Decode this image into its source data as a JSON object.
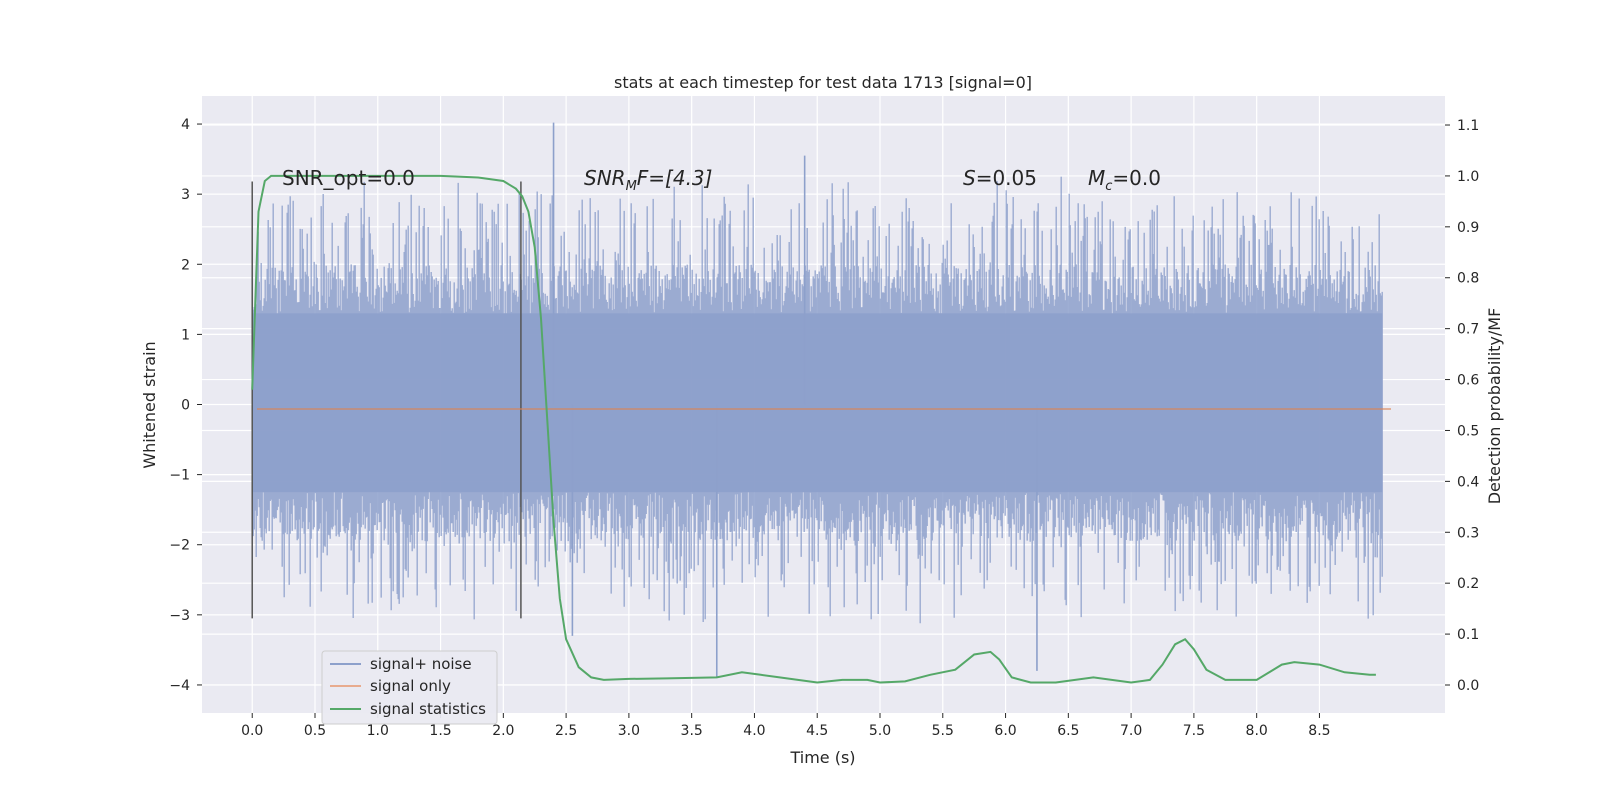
{
  "chart_data": {
    "type": "line",
    "title": "stats at each timestep for test data 1713 [signal=0]",
    "xlabel": "Time (s)",
    "ylabel": "Whitened strain",
    "y2label": "Detection probability/MF",
    "xlim": [
      -0.4,
      9.5
    ],
    "ylim": [
      -4.4,
      4.4
    ],
    "y2lim": [
      -0.055,
      1.157
    ],
    "xticks": [
      "0.0",
      "0.5",
      "1.0",
      "1.5",
      "2.0",
      "2.5",
      "3.0",
      "3.5",
      "4.0",
      "4.5",
      "5.0",
      "5.5",
      "6.0",
      "6.5",
      "7.0",
      "7.5",
      "8.0",
      "8.5"
    ],
    "yticks": [
      "4",
      "3",
      "2",
      "1",
      "0",
      "−1",
      "−2",
      "−3",
      "−4"
    ],
    "y2ticks": [
      "1.1",
      "1.0",
      "0.9",
      "0.8",
      "0.7",
      "0.6",
      "0.5",
      "0.4",
      "0.3",
      "0.2",
      "0.1",
      "0.0"
    ],
    "annotations": {
      "snr_opt": "SNR_opt=0.0",
      "snr_mf_main": "SNR",
      "snr_mf_sub": "M",
      "snr_mf_rest": "F=[4.3]",
      "s_main": "S",
      "s_rest": "=0.05",
      "mc_main": "M",
      "mc_sub": "c",
      "mc_rest": "=0.0"
    },
    "window_markers_s": [
      0.0,
      2.14
    ],
    "legend": {
      "position": "lower-left",
      "entries": [
        {
          "label": "signal+ noise",
          "color": "#8da0cb"
        },
        {
          "label": "signal only",
          "color": "#dd8452"
        },
        {
          "label": "signal statistics",
          "color": "#55a868"
        }
      ]
    },
    "series": [
      {
        "name": "signal+ noise",
        "color": "#8da0cb",
        "x_range": [
          0.0,
          9.0
        ],
        "envelope_core": [
          -1.25,
          1.3
        ],
        "typical_peak_range": [
          2.0,
          3.3
        ],
        "max": 4.02,
        "min": -3.9
      },
      {
        "name": "signal only",
        "color": "#dd8452",
        "x": [
          0.0,
          9.0
        ],
        "values": [
          0.0,
          0.0
        ]
      },
      {
        "name": "signal statistics",
        "color": "#55a868",
        "axis": "right",
        "x": [
          0.0,
          0.05,
          0.1,
          0.15,
          0.25,
          0.5,
          1.0,
          1.5,
          1.8,
          2.0,
          2.1,
          2.15,
          2.2,
          2.25,
          2.3,
          2.35,
          2.4,
          2.45,
          2.5,
          2.6,
          2.7,
          2.8,
          3.0,
          3.3,
          3.7,
          3.9,
          4.05,
          4.2,
          4.5,
          4.7,
          4.9,
          5.0,
          5.2,
          5.4,
          5.6,
          5.75,
          5.88,
          5.95,
          6.05,
          6.2,
          6.4,
          6.7,
          7.0,
          7.15,
          7.25,
          7.35,
          7.43,
          7.5,
          7.6,
          7.75,
          8.0,
          8.2,
          8.3,
          8.5,
          8.7,
          8.9,
          8.95
        ],
        "values": [
          0.58,
          0.93,
          0.99,
          1.0,
          1.0,
          1.0,
          1.0,
          1.0,
          0.997,
          0.99,
          0.975,
          0.96,
          0.93,
          0.86,
          0.72,
          0.52,
          0.32,
          0.17,
          0.09,
          0.035,
          0.015,
          0.01,
          0.012,
          0.013,
          0.015,
          0.025,
          0.02,
          0.015,
          0.005,
          0.01,
          0.01,
          0.005,
          0.007,
          0.02,
          0.03,
          0.06,
          0.065,
          0.05,
          0.015,
          0.005,
          0.005,
          0.015,
          0.005,
          0.01,
          0.04,
          0.08,
          0.09,
          0.07,
          0.03,
          0.01,
          0.01,
          0.04,
          0.045,
          0.04,
          0.025,
          0.02,
          0.02
        ]
      }
    ]
  }
}
